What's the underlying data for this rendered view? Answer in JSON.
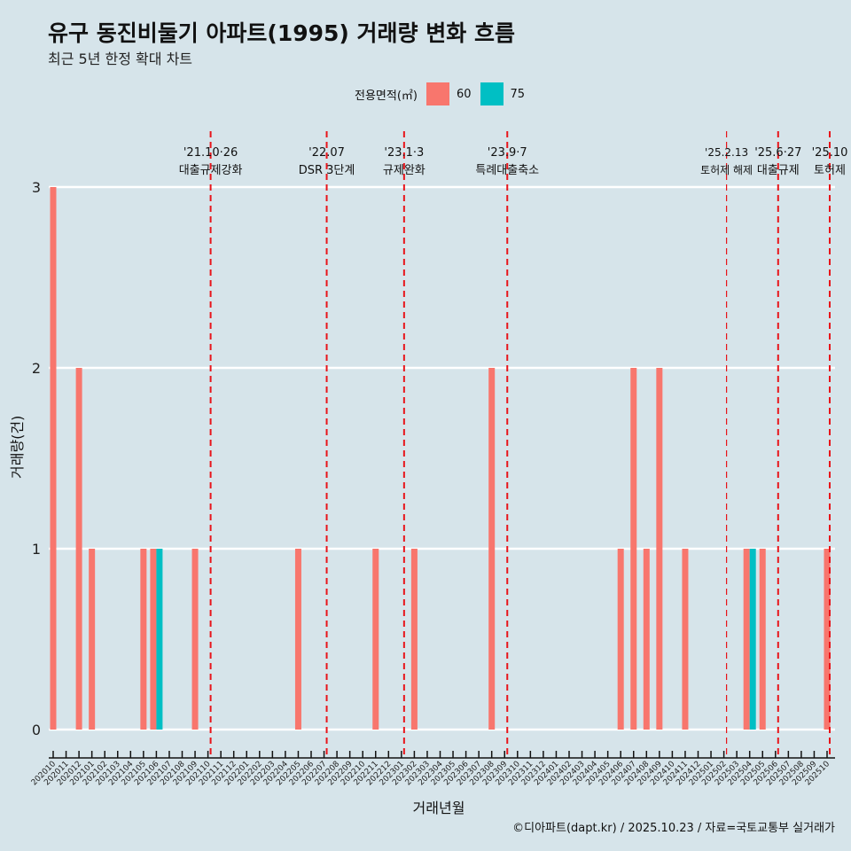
{
  "title": "유구 동진비둘기 아파트(1995) 거래량 변화 흐름",
  "subtitle": "최근 5년 한정 확대 차트",
  "caption": "©디아파트(dapt.kr) / 2025.10.23 / 자료=국토교통부 실거래가",
  "chart_data": {
    "type": "bar",
    "title": "유구 동진비둘기 아파트(1995) 거래량 변화 흐름",
    "xlabel": "거래년월",
    "ylabel": "거래량(건)",
    "ylim": [
      0,
      3
    ],
    "yticks": [
      0,
      1,
      2,
      3
    ],
    "legend": {
      "title": "전용면적(㎡)",
      "position": "top",
      "entries": [
        "60",
        "75"
      ]
    },
    "colors": {
      "60": "#f8766d",
      "75": "#00bfc4"
    },
    "categories": [
      "202010",
      "202011",
      "202012",
      "202101",
      "202102",
      "202103",
      "202104",
      "202105",
      "202106",
      "202107",
      "202108",
      "202109",
      "202110",
      "202111",
      "202112",
      "202201",
      "202202",
      "202203",
      "202204",
      "202205",
      "202206",
      "202207",
      "202208",
      "202209",
      "202210",
      "202211",
      "202212",
      "202301",
      "202302",
      "202303",
      "202304",
      "202305",
      "202306",
      "202307",
      "202308",
      "202309",
      "202310",
      "202311",
      "202312",
      "202401",
      "202402",
      "202403",
      "202404",
      "202405",
      "202406",
      "202407",
      "202408",
      "202409",
      "202410",
      "202411",
      "202412",
      "202501",
      "202502",
      "202503",
      "202504",
      "202505",
      "202506",
      "202507",
      "202508",
      "202509",
      "202510"
    ],
    "series": [
      {
        "name": "60",
        "points": [
          [
            "202010",
            3
          ],
          [
            "202012",
            2
          ],
          [
            "202101",
            1
          ],
          [
            "202105",
            1
          ],
          [
            "202106",
            1
          ],
          [
            "202109",
            1
          ],
          [
            "202205",
            1
          ],
          [
            "202211",
            1
          ],
          [
            "202302",
            1
          ],
          [
            "202308",
            2
          ],
          [
            "202406",
            1
          ],
          [
            "202407",
            2
          ],
          [
            "202408",
            1
          ],
          [
            "202409",
            2
          ],
          [
            "202411",
            1
          ],
          [
            "202504",
            1
          ],
          [
            "202505",
            1
          ],
          [
            "202510",
            1
          ]
        ]
      },
      {
        "name": "75",
        "points": [
          [
            "202106",
            1
          ],
          [
            "202504",
            1
          ]
        ]
      }
    ],
    "events": [
      {
        "month": "202110",
        "date": "'21.10·26",
        "label": "대출규제강화"
      },
      {
        "month": "202207",
        "date": "'22.07",
        "label": "DSR 3단계"
      },
      {
        "month": "202301",
        "date": "'23.1·3",
        "label": "규제완화"
      },
      {
        "month": "202309",
        "date": "'23.9·7",
        "label": "특례대출축소"
      },
      {
        "month": "202502",
        "date": "'25.2.13",
        "label": "토허제 해제"
      },
      {
        "month": "202506",
        "date": "'25.6·27",
        "label": "대출규제"
      },
      {
        "month": "202510",
        "date": "'25.10",
        "label": "토허제"
      }
    ]
  }
}
